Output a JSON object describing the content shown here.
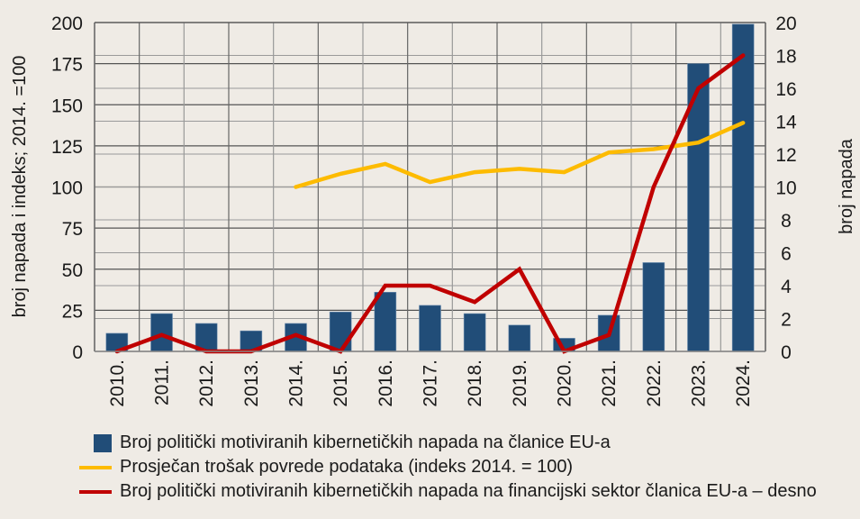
{
  "chart_data": {
    "type": "bar",
    "title": "",
    "categories": [
      "2010.",
      "2011.",
      "2012.",
      "2013.",
      "2014.",
      "2015.",
      "2016.",
      "2017.",
      "2018.",
      "2019.",
      "2020.",
      "2021.",
      "2022.",
      "2023.",
      "2024."
    ],
    "ylabel_left": "broj napada i indeks; 2014. =100",
    "ylabel_right": "broj napada",
    "ylim_left": [
      0,
      200
    ],
    "ylim_right": [
      0,
      20
    ],
    "yticks_left": [
      "0",
      "25",
      "50",
      "75",
      "100",
      "125",
      "150",
      "175",
      "200"
    ],
    "yticks_right": [
      "0",
      "2",
      "4",
      "6",
      "8",
      "10",
      "12",
      "14",
      "16",
      "18",
      "20"
    ],
    "grid": true,
    "legend_position": "bottom",
    "series": [
      {
        "name": "Broj politički motiviranih kibernetičkih napada na članice EU-a",
        "type": "bar",
        "axis": "left",
        "color": "#214d78",
        "values": [
          11,
          23,
          17,
          12.5,
          17,
          24,
          36,
          28,
          23,
          16,
          8,
          22,
          54,
          175,
          199
        ]
      },
      {
        "name": "Prosječan trošak povrede podataka (indeks 2014. = 100)",
        "type": "line",
        "axis": "left",
        "color": "#fdbb00",
        "values": [
          null,
          null,
          null,
          null,
          100,
          108,
          114,
          103,
          109,
          111,
          109,
          121,
          123,
          127,
          139
        ]
      },
      {
        "name": "Broj politički motiviranih kibernetičkih napada na financijski sektor članica EU-a – desno",
        "type": "line",
        "axis": "right",
        "color": "#c00000",
        "values": [
          0,
          1,
          0,
          0,
          1,
          0,
          4,
          4,
          3,
          5,
          0,
          1,
          10,
          16,
          18
        ]
      }
    ]
  }
}
